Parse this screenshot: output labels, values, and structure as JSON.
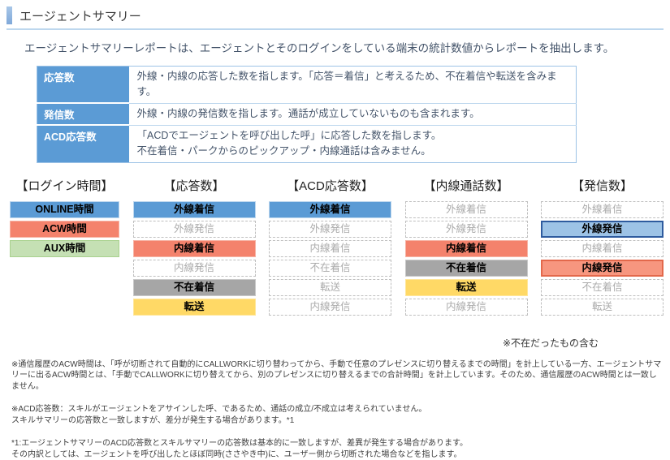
{
  "page": {
    "title": "エージェントサマリー",
    "intro": "エージェントサマリーレポートは、エージェントとそのログインをしている端末の統計数値からレポートを抽出します。"
  },
  "definitions_table": {
    "rows": [
      {
        "term": "応答数",
        "description": "外線・内線の応答した数を指します。「応答＝着信」と考えるため、不在着信や転送を含みます。"
      },
      {
        "term": "発信数",
        "description": "外線・内線の発信数を指します。通話が成立していないものも含まれます。"
      },
      {
        "term": "ACD応答数",
        "description": "「ACDでエージェントを呼び出した呼」に応答した数を指します。\n不在着信・パークからのピックアップ・内線通話は含みません。"
      }
    ]
  },
  "diagram": {
    "columns": [
      {
        "header": "【ログイン時間】",
        "boxes": [
          {
            "label": "ONLINE時間",
            "style": "blue"
          },
          {
            "label": "ACW時間",
            "style": "salmon"
          },
          {
            "label": "AUX時間",
            "style": "green"
          }
        ]
      },
      {
        "header": "【応答数】",
        "boxes": [
          {
            "label": "外線着信",
            "style": "blue"
          },
          {
            "label": "外線発信",
            "style": "inactive"
          },
          {
            "label": "内線着信",
            "style": "salmon"
          },
          {
            "label": "内線発信",
            "style": "inactive"
          },
          {
            "label": "不在着信",
            "style": "gray"
          },
          {
            "label": "転送",
            "style": "yellow"
          }
        ]
      },
      {
        "header": "【ACD応答数】",
        "boxes": [
          {
            "label": "外線着信",
            "style": "blue"
          },
          {
            "label": "外線発信",
            "style": "inactive"
          },
          {
            "label": "内線着信",
            "style": "inactive"
          },
          {
            "label": "不在着信",
            "style": "inactive"
          },
          {
            "label": "転送",
            "style": "inactive"
          },
          {
            "label": "内線発信",
            "style": "inactive"
          }
        ]
      },
      {
        "header": "【内線通話数】",
        "boxes": [
          {
            "label": "外線着信",
            "style": "inactive"
          },
          {
            "label": "外線発信",
            "style": "inactive"
          },
          {
            "label": "内線着信",
            "style": "salmon"
          },
          {
            "label": "不在着信",
            "style": "gray"
          },
          {
            "label": "転送",
            "style": "yellow"
          },
          {
            "label": "内線発信",
            "style": "inactive"
          }
        ]
      },
      {
        "header": "【発信数】",
        "boxes": [
          {
            "label": "外線着信",
            "style": "inactive"
          },
          {
            "label": "外線発信",
            "style": "blue-outline"
          },
          {
            "label": "内線着信",
            "style": "inactive"
          },
          {
            "label": "内線発信",
            "style": "salmon-outline"
          },
          {
            "label": "不在着信",
            "style": "inactive"
          },
          {
            "label": "転送",
            "style": "inactive"
          }
        ]
      }
    ]
  },
  "notes": {
    "absence_note": "※不在だったもの含む"
  },
  "footnotes": [
    "※通信履歴のACW時間は、「呼が切断されて自動的にCALLWORKに切り替わってから、手動で任意のプレゼンスに切り替えるまでの時間」を計上している一方、エージェントサマリーに出るACW時間とは、「手動でCALLWORKに切り替えてから、別のプレゼンスに切り替えるまでの合計時間」を計上しています。そのため、通信履歴のACW時間とは一致しません。",
    "※ACD応答数：スキルがエージェントをアサインした呼、であるため、通話の成立/不成立は考えられていません。\nスキルサマリーの応答数と一致しますが、差分が発生する場合があります。*1",
    "*1:エージェントサマリーのACD応答数とスキルサマリーの応答数は基本的に一致しますが、差異が発生する場合があります。\nその内訳としては、エージェントを呼び出したとほぼ同時(ささやき中)に、ユーザー側から切断された場合などを指します。"
  ],
  "colors": {
    "accent_blue": "#5B9BD5",
    "salmon": "#F4826C",
    "light_green": "#C5E0B4",
    "gray": "#A6A6A6",
    "yellow": "#FFD966",
    "light_blue_fill": "#9DC3E6",
    "dark_blue_border": "#2E5B9E",
    "coral_border": "#E3684B",
    "table_border": "#9DC3E6",
    "header_underline": "#BDD7EE",
    "body_text": "#44546A"
  }
}
